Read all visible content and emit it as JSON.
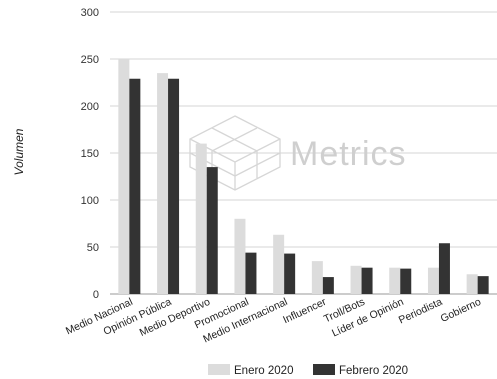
{
  "chart_data": {
    "type": "bar",
    "ylabel": "Volumen",
    "ylim": [
      0,
      300
    ],
    "yticks": [
      0,
      50,
      100,
      150,
      200,
      250,
      300
    ],
    "grid": true,
    "legend_position": "bottom",
    "categories": [
      "Medio Nacional",
      "Opinión Pública",
      "Medio Deportivo",
      "Promocional",
      "Medio Internacional",
      "Influencer",
      "Troll/Bots",
      "Líder de Opinión",
      "Periodista",
      "Gobierno"
    ],
    "series": [
      {
        "name": "Enero 2020",
        "color": "#dcdcdc",
        "values": [
          250,
          235,
          160,
          80,
          63,
          35,
          30,
          28,
          28,
          21
        ]
      },
      {
        "name": "Febrero 2020",
        "color": "#333333",
        "values": [
          229,
          229,
          135,
          44,
          43,
          18,
          28,
          27,
          54,
          19
        ]
      }
    ],
    "watermark": "Metrics",
    "watermark_icon": "cube-icon"
  }
}
